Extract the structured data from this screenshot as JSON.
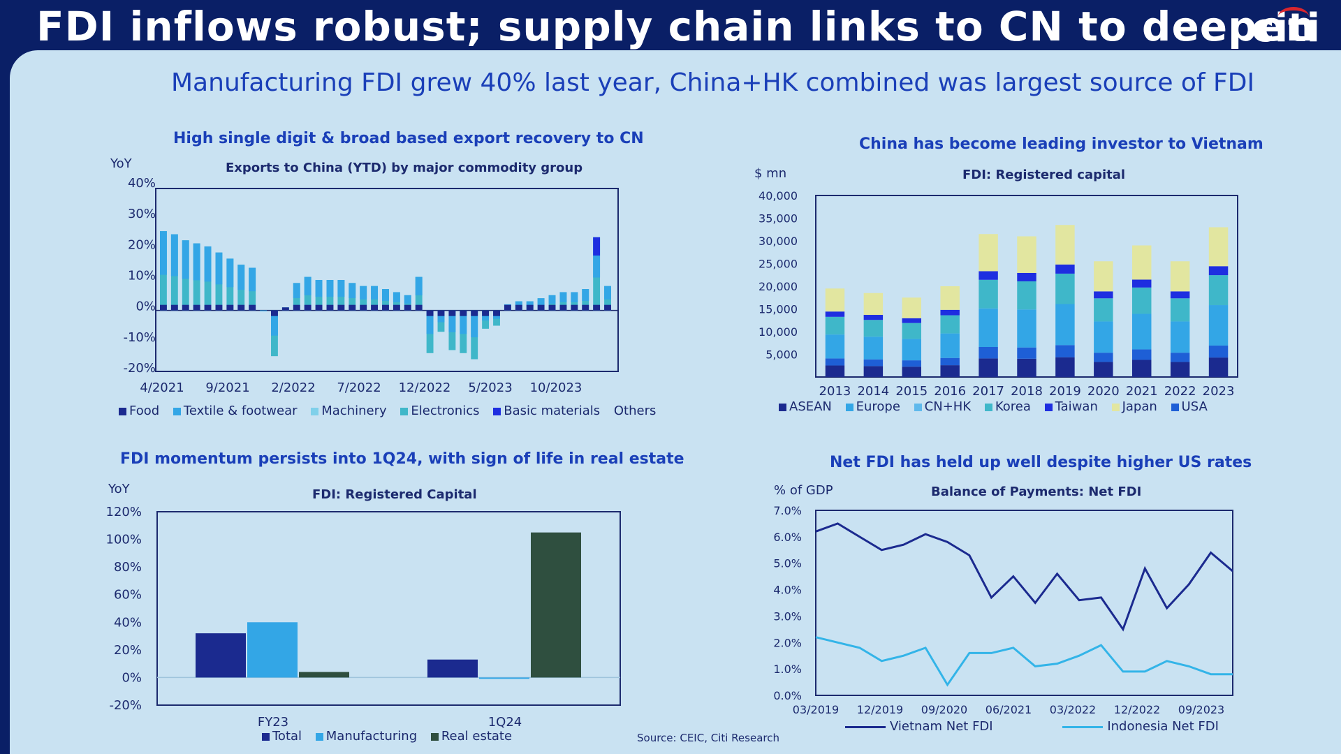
{
  "header": {
    "title": "FDI inflows robust; supply chain links to CN to deepen",
    "logo": "citi"
  },
  "subtitle": "Manufacturing FDI grew 40% last year, China+HK combined was largest source of FDI",
  "source": "Source: CEIC, Citi Research",
  "colors": {
    "navy": "#1b2a8f",
    "blue": "#1e5fd6",
    "lightblue": "#33a6e6",
    "teal": "#3fb7c9",
    "darkgreen": "#2f4f3f",
    "khaki": "#e2e6a0"
  },
  "chart_data": [
    {
      "type": "bar",
      "title": "High single digit & broad based export recovery to CN",
      "subtitle": "Exports to China (YTD) by major commodity group",
      "ylabel": "YoY",
      "ylim": [
        -20,
        40
      ],
      "yticks": [
        "40%",
        "30%",
        "20%",
        "10%",
        "0%",
        "-10%",
        "-20%"
      ],
      "xticks": [
        "4/2021",
        "9/2021",
        "2/2022",
        "7/2022",
        "12/2022",
        "5/2023",
        "10/2023"
      ],
      "legend": [
        "Food",
        "Textile & footwear",
        "Machinery",
        "Electronics",
        "Basic materials",
        "Others"
      ],
      "total": [
        26,
        25,
        23,
        22,
        21,
        19,
        17,
        15,
        14,
        0,
        -15,
        1,
        9,
        11,
        10,
        10,
        10,
        9,
        8,
        8,
        7,
        6,
        5,
        11,
        -14,
        -7,
        -13,
        -14,
        -16,
        -6,
        -5,
        2,
        3,
        3,
        4,
        5,
        6,
        6,
        7,
        24,
        8
      ]
    },
    {
      "type": "bar",
      "title": "China has become leading investor to Vietnam",
      "subtitle": "FDI: Registered capital",
      "ylabel": "$ mn",
      "ylim": [
        0,
        40000
      ],
      "yticks": [
        "40,000",
        "35,000",
        "30,000",
        "25,000",
        "20,000",
        "15,000",
        "10,000",
        "5,000"
      ],
      "categories": [
        "2013",
        "2014",
        "2015",
        "2016",
        "2017",
        "2018",
        "2019",
        "2020",
        "2021",
        "2022",
        "2023"
      ],
      "legend": [
        "ASEAN",
        "Europe",
        "CN+HK",
        "Korea",
        "Taiwan",
        "Japan",
        "USA"
      ],
      "totals": [
        19500,
        18500,
        17500,
        20000,
        31500,
        31000,
        33500,
        25500,
        29000,
        25500,
        33000
      ]
    },
    {
      "type": "bar",
      "title": "FDI momentum persists into 1Q24, with sign of life in real estate",
      "subtitle": "FDI: Registered Capital",
      "ylabel": "YoY",
      "ylim": [
        -20,
        120
      ],
      "yticks": [
        "120%",
        "100%",
        "80%",
        "60%",
        "40%",
        "20%",
        "0%",
        "-20%"
      ],
      "categories": [
        "FY23",
        "1Q24"
      ],
      "series": [
        {
          "name": "Total",
          "values": [
            32,
            13
          ]
        },
        {
          "name": "Manufacturing",
          "values": [
            40,
            -1
          ]
        },
        {
          "name": "Real estate",
          "values": [
            4,
            105
          ]
        }
      ]
    },
    {
      "type": "line",
      "title": "Net FDI has held up well despite higher US rates",
      "subtitle": "Balance of Payments: Net FDI",
      "ylabel": "% of GDP",
      "ylim": [
        0,
        7
      ],
      "yticks": [
        "7.0%",
        "6.0%",
        "5.0%",
        "4.0%",
        "3.0%",
        "2.0%",
        "1.0%",
        "0.0%"
      ],
      "xticks": [
        "03/2019",
        "12/2019",
        "09/2020",
        "06/2021",
        "03/2022",
        "12/2022",
        "09/2023"
      ],
      "series": [
        {
          "name": "Vietnam Net FDI",
          "values": [
            6.2,
            6.5,
            6.0,
            5.5,
            5.7,
            6.1,
            5.8,
            5.3,
            3.7,
            4.5,
            3.5,
            4.6,
            3.6,
            3.7,
            2.5,
            4.8,
            3.3,
            4.2,
            5.4,
            4.7
          ]
        },
        {
          "name": "Indonesia Net FDI",
          "values": [
            2.2,
            2.0,
            1.8,
            1.3,
            1.5,
            1.8,
            0.4,
            1.6,
            1.6,
            1.8,
            1.1,
            1.2,
            1.5,
            1.9,
            0.9,
            0.9,
            1.3,
            1.1,
            0.8,
            0.8
          ]
        }
      ]
    }
  ]
}
